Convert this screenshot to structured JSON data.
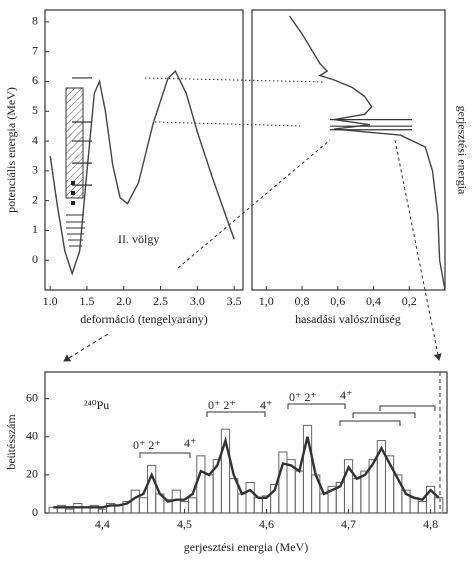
{
  "chart_data": [
    {
      "type": "line",
      "xlabel": "deformáció (tengelyarány)",
      "ylabel": "potenciális energia (MeV)",
      "annotation": "II. völgy",
      "x": [
        1.0,
        1.1,
        1.2,
        1.3,
        1.4,
        1.5,
        1.6,
        1.67,
        1.75,
        1.85,
        1.95,
        2.05,
        2.2,
        2.4,
        2.6,
        2.7,
        2.85,
        3.0,
        3.2,
        3.4,
        3.5
      ],
      "series": [
        {
          "color": "#444444",
          "values": [
            3.5,
            1.8,
            0.3,
            -0.45,
            0.3,
            3.0,
            5.6,
            6.0,
            5.0,
            3.2,
            2.1,
            1.9,
            2.6,
            4.6,
            6.1,
            6.35,
            5.6,
            4.3,
            2.8,
            1.4,
            0.7
          ]
        }
      ],
      "levels": [
        2.52,
        3.26,
        4.0,
        4.64,
        6.12
      ],
      "xlim": [
        0.93,
        3.62
      ],
      "ylim": [
        -1,
        8.4
      ],
      "xticks": [
        {
          "value": 1,
          "label": "1.0"
        },
        {
          "value": 1.5,
          "label": "1.5"
        },
        {
          "value": 2,
          "label": "2.0"
        },
        {
          "value": 2.5,
          "label": "2.5"
        },
        {
          "value": 3,
          "label": "3.0"
        },
        {
          "value": 3.5,
          "label": "3.5"
        }
      ],
      "yticks": [
        0,
        1,
        2,
        3,
        4,
        5,
        6,
        7,
        8
      ]
    },
    {
      "type": "line",
      "xlabel": "hasadási valószínűség",
      "ylabel": "gerjesztési energia",
      "x": [
        0.87,
        0.8,
        0.74,
        0.7,
        0.66,
        0.7,
        0.62,
        0.52,
        0.45,
        0.41,
        0.45,
        0.62,
        0.42,
        0.62,
        0.25,
        0.11,
        0.07,
        0.04,
        0.03,
        0
      ],
      "series": [
        {
          "color": "#444444",
          "values": [
            8.2,
            7.6,
            7.0,
            6.6,
            6.35,
            6.2,
            6.05,
            5.8,
            5.5,
            5.15,
            4.9,
            4.72,
            4.55,
            4.4,
            4.2,
            3.8,
            3.0,
            1.5,
            0,
            -1
          ]
        }
      ],
      "levels": [
        4.72,
        4.5,
        4.38
      ],
      "xlim": [
        1.08,
        0
      ],
      "ylim": [
        -1,
        8.4
      ],
      "xticks": [
        {
          "value": 1,
          "label": "1,0"
        },
        {
          "value": 0.8,
          "label": "0,8"
        },
        {
          "value": 0.6,
          "label": "0,6"
        },
        {
          "value": 0.4,
          "label": "0,4"
        },
        {
          "value": 0.2,
          "label": "0,2"
        }
      ]
    },
    {
      "type": "histogram",
      "xlabel": "gerjesztési energia (MeV)",
      "ylabel": "beütésszám",
      "annotation": "²⁴⁰Pu",
      "labels": [
        "0⁺ 2⁺",
        "4⁺",
        "0⁺ 2⁺",
        "4⁺",
        "0⁺ 2⁺",
        "4⁺"
      ],
      "color": "#666666",
      "bins": [
        4.335,
        4.345,
        4.355,
        4.365,
        4.375,
        4.385,
        4.395,
        4.405,
        4.415,
        4.425,
        4.435,
        4.445,
        4.455,
        4.465,
        4.475,
        4.485,
        4.495,
        4.505,
        4.515,
        4.525,
        4.535,
        4.545,
        4.555,
        4.565,
        4.575,
        4.585,
        4.595,
        4.605,
        4.615,
        4.625,
        4.635,
        4.645,
        4.655,
        4.665,
        4.675,
        4.685,
        4.695,
        4.705,
        4.715,
        4.725,
        4.735,
        4.745,
        4.755,
        4.765,
        4.775,
        4.785,
        4.795,
        4.805,
        4.815
      ],
      "values": [
        3,
        4,
        2,
        5,
        3,
        4,
        2,
        5,
        4,
        6,
        12,
        8,
        25,
        10,
        7,
        12,
        6,
        8,
        30,
        20,
        28,
        44,
        18,
        10,
        16,
        8,
        9,
        15,
        32,
        28,
        22,
        46,
        20,
        10,
        14,
        16,
        28,
        18,
        22,
        28,
        38,
        30,
        20,
        12,
        8,
        6,
        14,
        8
      ],
      "fit": {
        "color": "#333333",
        "x": [
          4.34,
          4.35,
          4.36,
          4.37,
          4.38,
          4.39,
          4.4,
          4.41,
          4.42,
          4.43,
          4.44,
          4.45,
          4.46,
          4.47,
          4.48,
          4.49,
          4.5,
          4.51,
          4.52,
          4.53,
          4.54,
          4.55,
          4.56,
          4.57,
          4.58,
          4.59,
          4.6,
          4.61,
          4.62,
          4.63,
          4.64,
          4.65,
          4.66,
          4.67,
          4.68,
          4.69,
          4.7,
          4.71,
          4.72,
          4.73,
          4.74,
          4.75,
          4.76,
          4.77,
          4.78,
          4.79,
          4.8,
          4.81
        ],
        "values": [
          3,
          3,
          3,
          3,
          3,
          3,
          3,
          4,
          4,
          5,
          8,
          10,
          20,
          10,
          6,
          7,
          7,
          10,
          22,
          20,
          25,
          38,
          20,
          10,
          12,
          8,
          8,
          12,
          26,
          25,
          22,
          40,
          20,
          10,
          12,
          14,
          24,
          18,
          20,
          26,
          34,
          26,
          18,
          10,
          8,
          7,
          12,
          8
        ]
      },
      "xlim": [
        4.33,
        4.82
      ],
      "ylim": [
        0,
        74
      ],
      "xticks": [
        {
          "value": 4.4,
          "label": "4,4"
        },
        {
          "value": 4.5,
          "label": "4,5"
        },
        {
          "value": 4.6,
          "label": "4,6"
        },
        {
          "value": 4.7,
          "label": "4,7"
        },
        {
          "value": 4.8,
          "label": "4,8"
        }
      ],
      "yticks": [
        0,
        20,
        40,
        60
      ]
    }
  ]
}
